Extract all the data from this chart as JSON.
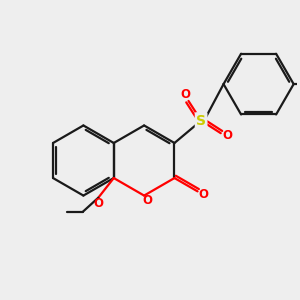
{
  "bg_color": "#eeeeee",
  "bond_color": "#1a1a1a",
  "oxygen_color": "#ff0000",
  "sulfur_color": "#cccc00",
  "line_width": 1.6,
  "dbo": 0.038,
  "figsize": [
    3.0,
    3.0
  ],
  "dpi": 100,
  "xlim": [
    -1.6,
    2.6
  ],
  "ylim": [
    -1.3,
    1.8
  ]
}
